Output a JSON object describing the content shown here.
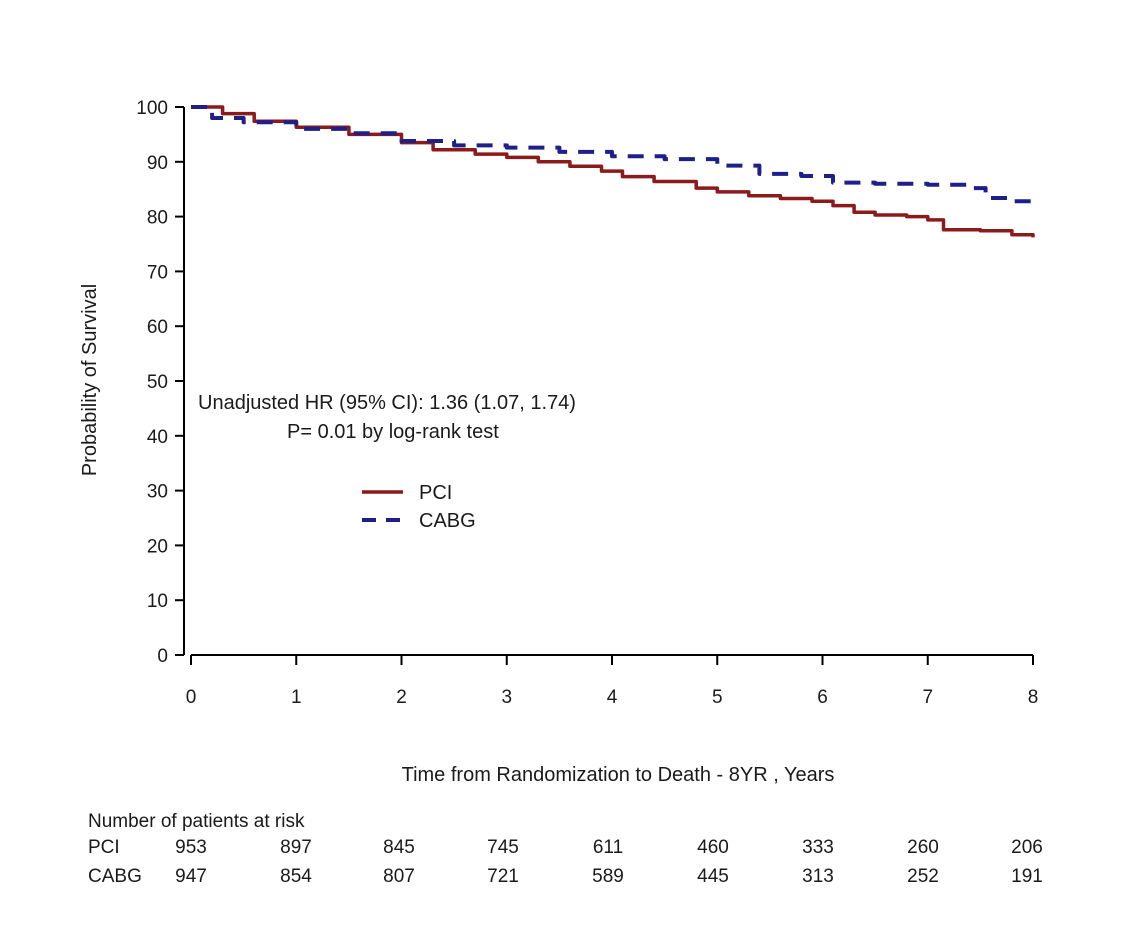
{
  "chart_data": {
    "type": "line",
    "title": "",
    "xlabel": "Time from Randomization to  Death - 8YR , Years",
    "ylabel": "Probability of Survival",
    "xlim": [
      0,
      8
    ],
    "ylim": [
      0,
      100
    ],
    "xticks": [
      "0",
      "1",
      "2",
      "3",
      "4",
      "5",
      "6",
      "7",
      "8"
    ],
    "yticks": [
      "0",
      "10",
      "20",
      "30",
      "40",
      "50",
      "60",
      "70",
      "80",
      "90",
      "100"
    ],
    "grid": false,
    "legend_position": "center-left",
    "annotations": [
      "Unadjusted HR (95% CI): 1.36 (1.07, 1.74)",
      "P= 0.01  by log-rank test"
    ],
    "series": [
      {
        "name": "PCI",
        "color": "#8b1a1a",
        "style": "solid",
        "points": [
          [
            0,
            100
          ],
          [
            0.3,
            98.8
          ],
          [
            0.6,
            97.4
          ],
          [
            1.0,
            96.3
          ],
          [
            1.5,
            95.0
          ],
          [
            2.0,
            93.5
          ],
          [
            2.3,
            92.2
          ],
          [
            2.7,
            91.4
          ],
          [
            3.0,
            90.8
          ],
          [
            3.3,
            90.0
          ],
          [
            3.6,
            89.2
          ],
          [
            3.9,
            88.3
          ],
          [
            4.1,
            87.3
          ],
          [
            4.4,
            86.4
          ],
          [
            4.8,
            85.2
          ],
          [
            5.0,
            84.5
          ],
          [
            5.3,
            83.8
          ],
          [
            5.6,
            83.3
          ],
          [
            5.9,
            82.8
          ],
          [
            6.1,
            82.0
          ],
          [
            6.3,
            80.8
          ],
          [
            6.5,
            80.3
          ],
          [
            6.8,
            80.0
          ],
          [
            7.0,
            79.4
          ],
          [
            7.15,
            77.6
          ],
          [
            7.5,
            77.4
          ],
          [
            7.8,
            76.7
          ],
          [
            8.0,
            76.2
          ]
        ]
      },
      {
        "name": "CABG",
        "color": "#1f1f8a",
        "style": "dashed",
        "points": [
          [
            0,
            100
          ],
          [
            0.2,
            98.0
          ],
          [
            0.5,
            97.2
          ],
          [
            1.0,
            96.0
          ],
          [
            1.5,
            95.2
          ],
          [
            2.0,
            93.8
          ],
          [
            2.5,
            93.0
          ],
          [
            3.0,
            92.6
          ],
          [
            3.5,
            91.8
          ],
          [
            4.0,
            91.0
          ],
          [
            4.5,
            90.5
          ],
          [
            5.0,
            89.3
          ],
          [
            5.4,
            87.8
          ],
          [
            5.8,
            87.4
          ],
          [
            6.1,
            86.2
          ],
          [
            6.5,
            86.0
          ],
          [
            7.0,
            85.8
          ],
          [
            7.4,
            85.2
          ],
          [
            7.55,
            83.4
          ],
          [
            7.8,
            82.8
          ],
          [
            8.0,
            82.0
          ]
        ]
      }
    ],
    "risk_table": {
      "title": "Number of patients at risk",
      "rows": [
        {
          "label": "PCI",
          "values": [
            "953",
            "897",
            "845",
            "745",
            "611",
            "460",
            "333",
            "260",
            "206"
          ]
        },
        {
          "label": "CABG",
          "values": [
            "947",
            "854",
            "807",
            "721",
            "589",
            "445",
            "313",
            "252",
            "191"
          ]
        }
      ]
    }
  }
}
